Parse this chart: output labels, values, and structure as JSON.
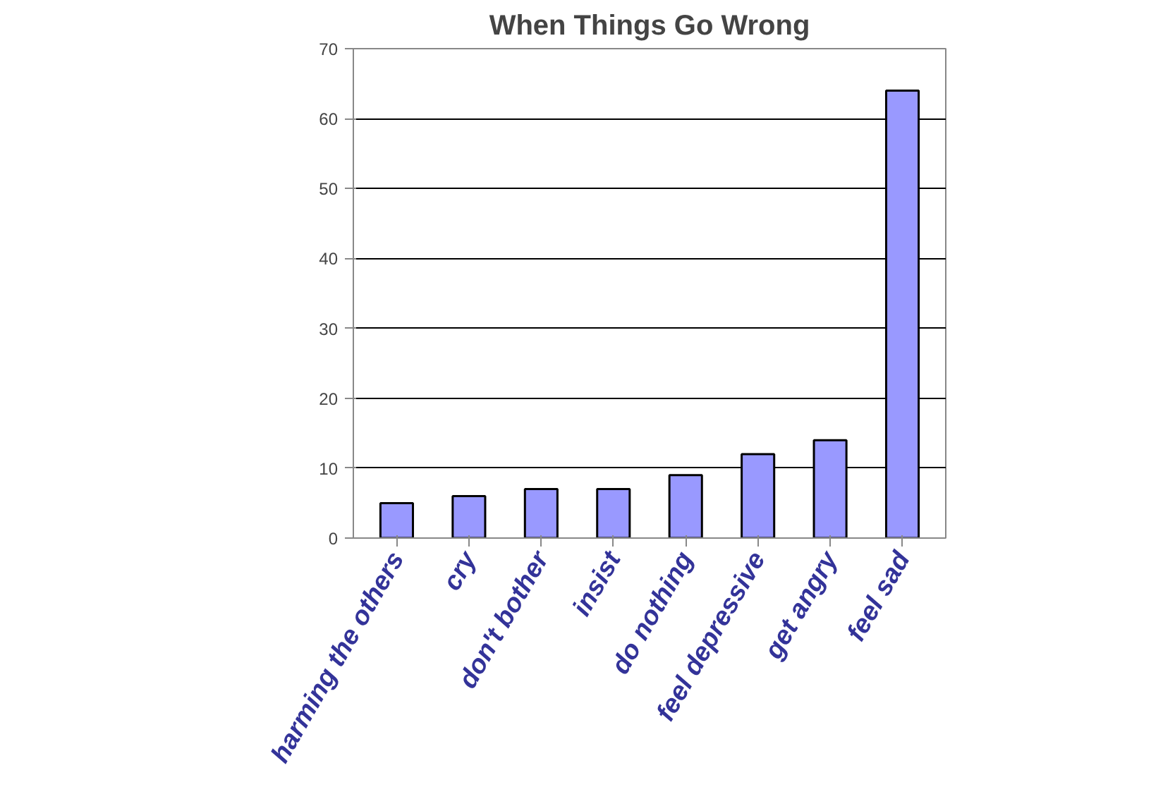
{
  "chart_data": {
    "type": "bar",
    "title": "When Things Go Wrong",
    "categories": [
      "harming the others",
      "cry",
      "don't bother",
      "insist",
      "do nothing",
      "feel depressive",
      "get angry",
      "feel sad"
    ],
    "values": [
      5,
      6,
      7,
      7,
      9,
      12,
      14,
      64
    ],
    "color": "#9999ff",
    "ylim": [
      0,
      70
    ],
    "yticks": [
      0,
      10,
      20,
      30,
      40,
      50,
      60,
      70
    ],
    "grid": "y"
  }
}
